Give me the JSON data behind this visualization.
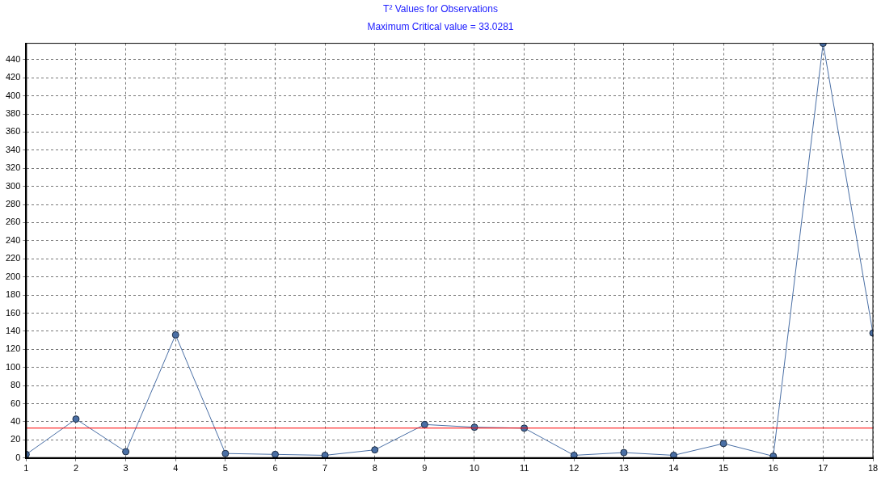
{
  "chart_data": {
    "type": "line",
    "title": "T² Values for Observations",
    "subtitle": "Maximum Critical value = 33.0281",
    "x": [
      1,
      2,
      3,
      4,
      5,
      6,
      7,
      8,
      9,
      10,
      11,
      12,
      13,
      14,
      15,
      16,
      17,
      18
    ],
    "series": [
      {
        "color": "#4a6fa5",
        "values": [
          4,
          43,
          7,
          136,
          5,
          4,
          3,
          9,
          37,
          34,
          33,
          3,
          6,
          3,
          16,
          2,
          458,
          138
        ]
      }
    ],
    "xlim": [
      1,
      18
    ],
    "xticks": [
      1,
      2,
      3,
      4,
      5,
      6,
      7,
      8,
      9,
      10,
      11,
      12,
      13,
      14,
      15,
      16,
      17,
      18
    ],
    "ylim": [
      0,
      458
    ],
    "yticks": [
      0,
      20,
      40,
      60,
      80,
      100,
      120,
      140,
      160,
      180,
      200,
      220,
      240,
      260,
      280,
      300,
      320,
      340,
      360,
      380,
      400,
      420,
      440
    ],
    "ref_lines": [
      {
        "axis": "y",
        "value": 33.0281,
        "color": "#ff0000"
      }
    ],
    "grid": true,
    "legend": false,
    "marker": "circle",
    "line_style": "solid"
  }
}
